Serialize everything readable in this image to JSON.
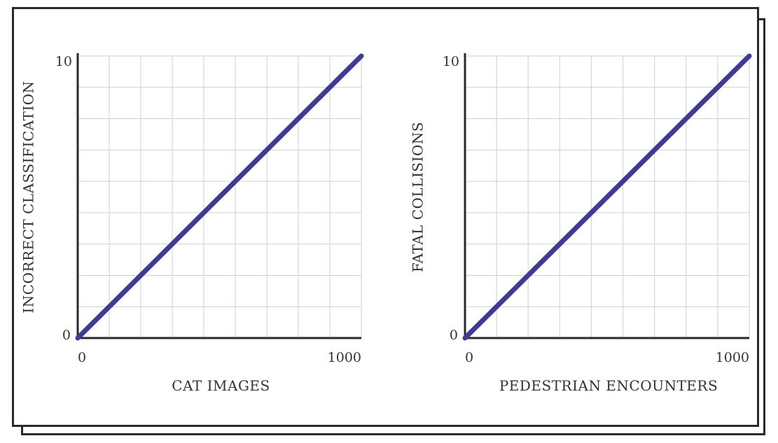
{
  "colors": {
    "line": "#3d3a9a",
    "grid": "#cfcfd6",
    "axis": "#2a2a2a",
    "frame": "#2a2a2a"
  },
  "chart_data": [
    {
      "type": "line",
      "xlabel": "CAT IMAGES",
      "ylabel": "INCORRECT CLASSIFICATION",
      "xlim": [
        0,
        1000
      ],
      "ylim": [
        0,
        10
      ],
      "x_ticks": [
        "0",
        "1000"
      ],
      "y_ticks": [
        "0",
        "10"
      ],
      "grid": true,
      "series": [
        {
          "x": [
            0,
            1000
          ],
          "y": [
            0,
            10
          ]
        }
      ]
    },
    {
      "type": "line",
      "xlabel": "PEDESTRIAN ENCOUNTERS",
      "ylabel": "FATAL COLLISIONS",
      "xlim": [
        0,
        1000
      ],
      "ylim": [
        0,
        10
      ],
      "x_ticks": [
        "0",
        "1000"
      ],
      "y_ticks": [
        "0",
        "10"
      ],
      "grid": true,
      "series": [
        {
          "x": [
            0,
            1000
          ],
          "y": [
            0,
            10
          ]
        }
      ]
    }
  ]
}
